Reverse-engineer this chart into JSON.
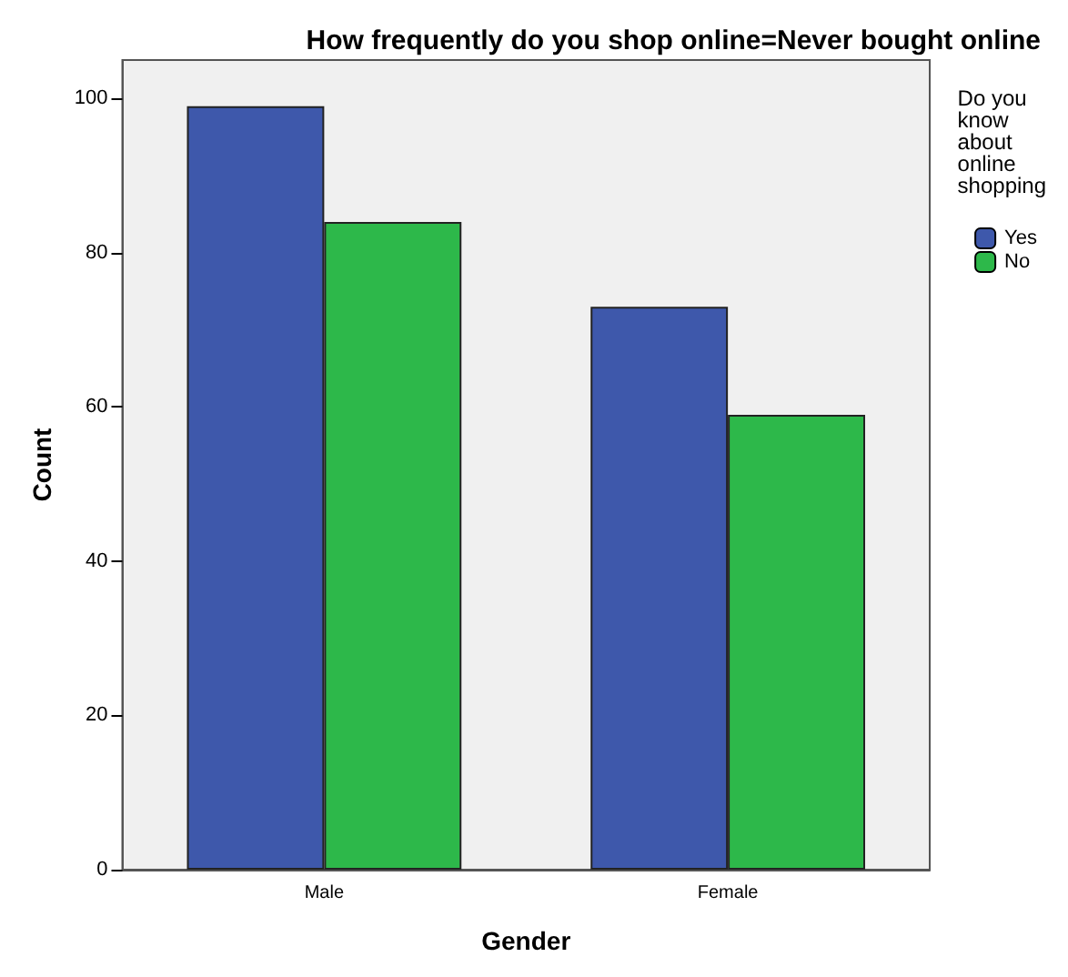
{
  "chart_data": {
    "type": "bar",
    "title": "How frequently do you shop online=Never bought online",
    "xlabel": "Gender",
    "ylabel": "Count",
    "legend_title": "Do you know about online shopping",
    "categories": [
      "Male",
      "Female"
    ],
    "series": [
      {
        "name": "Yes",
        "color": "#3e58ab",
        "values": [
          99,
          73
        ]
      },
      {
        "name": "No",
        "color": "#2db84a",
        "values": [
          84,
          59
        ]
      }
    ],
    "ylim": [
      0,
      105
    ],
    "yticks": [
      0,
      20,
      40,
      60,
      80,
      100
    ],
    "grid": false,
    "legend": "right"
  }
}
